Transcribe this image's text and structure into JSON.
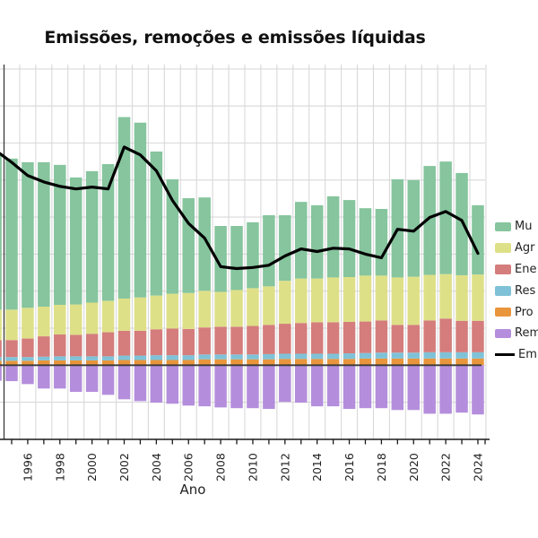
{
  "title": "Emissões, remoções e emissões líquidas",
  "x_axis": {
    "label": "Ano"
  },
  "y_axis": {
    "tick_labels_visible": false
  },
  "colors": {
    "mut": "#86c59e",
    "agropecuaria": "#dee088",
    "energia": "#d47d7c",
    "residuos": "#7fc2d7",
    "processos": "#e8953c",
    "remocoes": "#b48edc",
    "liquidas": "#000000",
    "grid": "#d9d9d9",
    "axis": "#1a1a1a",
    "zero_line": "#3a3a3a"
  },
  "legend": {
    "position": "right (clipped by image edge)",
    "items": [
      {
        "label": "Mu",
        "color_key": "mut",
        "type": "patch"
      },
      {
        "label": "Agr",
        "color_key": "agropecuaria",
        "type": "patch"
      },
      {
        "label": "Ene",
        "color_key": "energia",
        "type": "patch"
      },
      {
        "label": "Res",
        "color_key": "residuos",
        "type": "patch"
      },
      {
        "label": "Pro",
        "color_key": "processos",
        "type": "patch"
      },
      {
        "label": "Rem",
        "color_key": "remocoes",
        "type": "patch"
      },
      {
        "label": "Em",
        "color_key": "liquidas",
        "type": "line"
      }
    ]
  },
  "chart_data": {
    "type": "bar",
    "subtype": "stacked-bar-with-line",
    "title": "Emissões, remoções e emissões líquidas",
    "xlabel": "Ano",
    "ylabel": "",
    "y_unit": "gridline units (y-axis value labels cropped out of the left edge of the image)",
    "ylim": [
      -2.0,
      8.1
    ],
    "gridlines_y": [
      -1,
      0,
      1,
      2,
      3,
      4,
      5,
      6,
      7,
      8
    ],
    "grid": true,
    "legend_position": "right",
    "x": [
      1994,
      1995,
      1996,
      1997,
      1998,
      1999,
      2000,
      2001,
      2002,
      2003,
      2004,
      2005,
      2006,
      2007,
      2008,
      2009,
      2010,
      2011,
      2012,
      2013,
      2014,
      2015,
      2016,
      2017,
      2018,
      2019,
      2020,
      2021,
      2022,
      2023,
      2024
    ],
    "x_tick_labels": [
      "1996",
      "1998",
      "2000",
      "2002",
      "2004",
      "2006",
      "2008",
      "2010",
      "2012",
      "2014",
      "2016",
      "2018",
      "2020",
      "2022",
      "2024"
    ],
    "series": [
      {
        "name": "Pro",
        "role": "bar-positive",
        "color_key": "processos",
        "values": [
          0.12,
          0.12,
          0.12,
          0.13,
          0.13,
          0.13,
          0.13,
          0.13,
          0.14,
          0.14,
          0.14,
          0.14,
          0.14,
          0.16,
          0.16,
          0.16,
          0.16,
          0.16,
          0.17,
          0.17,
          0.17,
          0.17,
          0.17,
          0.18,
          0.18,
          0.18,
          0.18,
          0.18,
          0.18,
          0.18,
          0.18
        ]
      },
      {
        "name": "Res",
        "role": "bar-positive",
        "color_key": "residuos",
        "values": [
          0.1,
          0.1,
          0.1,
          0.1,
          0.11,
          0.11,
          0.11,
          0.11,
          0.12,
          0.12,
          0.13,
          0.13,
          0.13,
          0.13,
          0.13,
          0.13,
          0.13,
          0.14,
          0.14,
          0.14,
          0.14,
          0.14,
          0.15,
          0.15,
          0.16,
          0.16,
          0.16,
          0.17,
          0.17,
          0.17,
          0.17
        ]
      },
      {
        "name": "Ene",
        "role": "bar-positive",
        "color_key": "energia",
        "values": [
          0.46,
          0.46,
          0.5,
          0.55,
          0.59,
          0.58,
          0.61,
          0.65,
          0.67,
          0.67,
          0.7,
          0.72,
          0.71,
          0.73,
          0.75,
          0.75,
          0.77,
          0.79,
          0.81,
          0.83,
          0.85,
          0.85,
          0.85,
          0.85,
          0.87,
          0.75,
          0.75,
          0.86,
          0.91,
          0.85,
          0.85
        ]
      },
      {
        "name": "Agr",
        "role": "bar-positive",
        "color_key": "agropecuaria",
        "values": [
          0.82,
          0.82,
          0.83,
          0.8,
          0.8,
          0.82,
          0.84,
          0.85,
          0.87,
          0.9,
          0.91,
          0.94,
          0.97,
          0.99,
          0.94,
          0.99,
          1.02,
          1.04,
          1.16,
          1.2,
          1.18,
          1.21,
          1.21,
          1.24,
          1.21,
          1.28,
          1.3,
          1.23,
          1.2,
          1.23,
          1.25
        ]
      },
      {
        "name": "Mu",
        "role": "bar-positive",
        "color_key": "mut",
        "values": [
          4.15,
          4.08,
          3.93,
          3.9,
          3.78,
          3.43,
          3.55,
          3.69,
          4.9,
          4.72,
          3.89,
          3.09,
          2.56,
          2.52,
          1.78,
          1.73,
          1.78,
          1.92,
          1.77,
          2.07,
          1.98,
          2.19,
          2.08,
          1.82,
          1.8,
          2.65,
          2.61,
          2.94,
          3.04,
          2.76,
          1.87
        ]
      },
      {
        "name": "Rem",
        "role": "bar-negative",
        "color_key": "remocoes",
        "values": [
          -0.42,
          -0.43,
          -0.51,
          -0.63,
          -0.63,
          -0.72,
          -0.72,
          -0.8,
          -0.92,
          -0.97,
          -1.01,
          -1.04,
          -1.09,
          -1.11,
          -1.14,
          -1.16,
          -1.16,
          -1.18,
          -0.99,
          -1.01,
          -1.11,
          -1.11,
          -1.18,
          -1.16,
          -1.16,
          -1.21,
          -1.21,
          -1.31,
          -1.31,
          -1.28,
          -1.33
        ]
      },
      {
        "name": "Em",
        "role": "line",
        "color_key": "liquidas",
        "values": [
          5.8,
          5.48,
          5.12,
          4.95,
          4.83,
          4.76,
          4.81,
          4.76,
          5.89,
          5.68,
          5.25,
          4.45,
          3.83,
          3.43,
          2.66,
          2.61,
          2.64,
          2.7,
          2.95,
          3.14,
          3.07,
          3.16,
          3.14,
          3.0,
          2.9,
          3.67,
          3.62,
          3.99,
          4.15,
          3.91,
          3.02
        ]
      }
    ]
  }
}
